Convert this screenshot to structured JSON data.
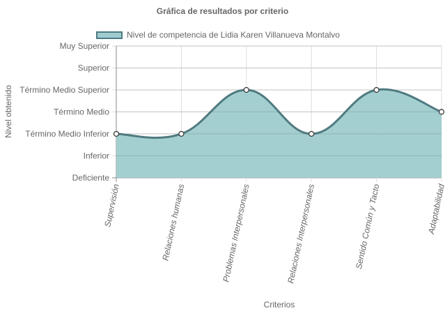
{
  "chart_data": {
    "type": "area",
    "title": "Gráfica de resultados por criterio",
    "xlabel": "Criterios",
    "ylabel": "Nivel obtenido",
    "levels": [
      "Deficiente",
      "Inferior",
      "Término Medio Inferior",
      "Término Medio",
      "Término Medio Superior",
      "Superior",
      "Muy Superior"
    ],
    "categories": [
      "Supervisión",
      "Relaciones humanas",
      "Problemas Interpersonales",
      "Relaciones Interpersonales",
      "Sentido Común y Tacto",
      "Adaptabilidad"
    ],
    "series": [
      {
        "name": "Nivel de competencia de Lidia Karen Villanueva Montalvo",
        "values": [
          "Término Medio Inferior",
          "Término Medio Inferior",
          "Término Medio Superior",
          "Término Medio Inferior",
          "Término Medio Superior",
          "Término Medio"
        ]
      }
    ],
    "grid": true,
    "legend_position": "top",
    "colors": {
      "fill": "#9ecccf",
      "line": "#4f7a80",
      "grid": "#dddddd",
      "axis": "#888888"
    }
  }
}
